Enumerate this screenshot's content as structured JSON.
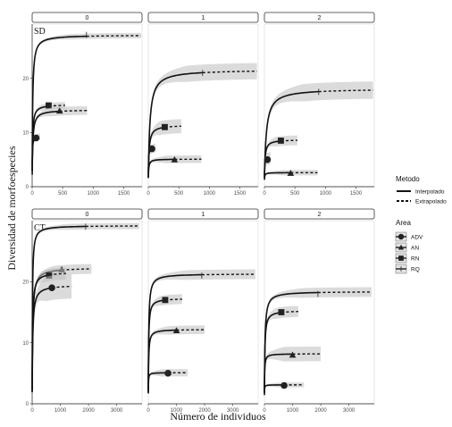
{
  "chart_data": {
    "type": "line",
    "ylabel": "Diversidad de morfoespecies",
    "xlabel": "Número de individuos",
    "legend": {
      "method_title": "Metodo",
      "method_items": [
        "Interpolado",
        "Extrapolado"
      ],
      "area_title": "Area",
      "area_items": [
        "ADV",
        "AN",
        "RN",
        "RQ"
      ],
      "placement": "right"
    },
    "grid": false,
    "rows": [
      {
        "label": "SD",
        "ylim": [
          0,
          30
        ],
        "y_ticks": [
          0,
          10,
          20
        ],
        "xlim": [
          0,
          1800
        ],
        "x_ticks": [
          0,
          500,
          1000,
          1500
        ],
        "panels": [
          {
            "strip": "0",
            "series": [
              {
                "area": "RQ",
                "observed_n": 890,
                "observed_s": 28,
                "extrap_to": 1780,
                "asymptote": 28,
                "halfsat": 8,
                "band": 0.5
              },
              {
                "area": "RN",
                "observed_n": 270,
                "observed_s": 15,
                "extrap_to": 540,
                "asymptote": 15.2,
                "halfsat": 7,
                "band": 0.6
              },
              {
                "area": "AN",
                "observed_n": 450,
                "observed_s": 14,
                "extrap_to": 900,
                "asymptote": 14.2,
                "halfsat": 10,
                "band": 0.8
              },
              {
                "area": "ADV",
                "observed_n": 65,
                "observed_s": 9,
                "extrap_to": 130,
                "asymptote": 9.4,
                "halfsat": 3,
                "band": 0.6
              }
            ]
          },
          {
            "strip": "1",
            "series": [
              {
                "area": "RQ",
                "observed_n": 890,
                "observed_s": 21,
                "extrap_to": 1780,
                "asymptote": 21.6,
                "halfsat": 25,
                "band": 1.5
              },
              {
                "area": "RN",
                "observed_n": 270,
                "observed_s": 11,
                "extrap_to": 540,
                "asymptote": 11.4,
                "halfsat": 12,
                "band": 1.3
              },
              {
                "area": "AN",
                "observed_n": 430,
                "observed_s": 5,
                "extrap_to": 870,
                "asymptote": 5.1,
                "halfsat": 6,
                "band": 0.7
              },
              {
                "area": "ADV",
                "observed_n": 60,
                "observed_s": 7,
                "extrap_to": 120,
                "asymptote": 7.3,
                "halfsat": 3,
                "band": 0.8
              }
            ]
          },
          {
            "strip": "2",
            "series": [
              {
                "area": "RQ",
                "observed_n": 890,
                "observed_s": 17.5,
                "extrap_to": 1780,
                "asymptote": 18.1,
                "halfsat": 30,
                "band": 1.6
              },
              {
                "area": "RN",
                "observed_n": 270,
                "observed_s": 8.5,
                "extrap_to": 540,
                "asymptote": 8.7,
                "halfsat": 10,
                "band": 0.9
              },
              {
                "area": "AN",
                "observed_n": 430,
                "observed_s": 2.5,
                "extrap_to": 870,
                "asymptote": 2.6,
                "halfsat": 5,
                "band": 0.5
              },
              {
                "area": "ADV",
                "observed_n": 50,
                "observed_s": 5,
                "extrap_to": 100,
                "asymptote": 5.4,
                "halfsat": 3,
                "band": 1.1
              }
            ]
          }
        ]
      },
      {
        "label": "CT",
        "ylim": [
          0,
          30
        ],
        "y_ticks": [
          0,
          10,
          20
        ],
        "xlim": [
          0,
          3900
        ],
        "x_ticks": [
          0,
          1000,
          2000,
          3000
        ],
        "panels": [
          {
            "strip": "0",
            "series": [
              {
                "area": "RQ",
                "observed_n": 1900,
                "observed_s": 29,
                "extrap_to": 3800,
                "asymptote": 29.2,
                "halfsat": 10,
                "band": 0.5
              },
              {
                "area": "AN",
                "observed_n": 1050,
                "observed_s": 22,
                "extrap_to": 2100,
                "asymptote": 22.3,
                "halfsat": 20,
                "band": 0.8
              },
              {
                "area": "RN",
                "observed_n": 600,
                "observed_s": 21,
                "extrap_to": 1200,
                "asymptote": 21.6,
                "halfsat": 15,
                "band": 1.0
              },
              {
                "area": "ADV",
                "observed_n": 700,
                "observed_s": 19,
                "extrap_to": 1400,
                "asymptote": 19.5,
                "halfsat": 20,
                "band": 2.0
              }
            ]
          },
          {
            "strip": "1",
            "series": [
              {
                "area": "RQ",
                "observed_n": 1900,
                "observed_s": 21,
                "extrap_to": 3800,
                "asymptote": 21.3,
                "halfsat": 15,
                "band": 0.8
              },
              {
                "area": "RN",
                "observed_n": 600,
                "observed_s": 17,
                "extrap_to": 1200,
                "asymptote": 17.3,
                "halfsat": 12,
                "band": 0.8
              },
              {
                "area": "AN",
                "observed_n": 1000,
                "observed_s": 12,
                "extrap_to": 2000,
                "asymptote": 12.2,
                "halfsat": 12,
                "band": 0.7
              },
              {
                "area": "ADV",
                "observed_n": 700,
                "observed_s": 5,
                "extrap_to": 1400,
                "asymptote": 5.1,
                "halfsat": 5,
                "band": 0.6
              }
            ]
          },
          {
            "strip": "2",
            "series": [
              {
                "area": "RQ",
                "observed_n": 1900,
                "observed_s": 18,
                "extrap_to": 3800,
                "asymptote": 18.4,
                "halfsat": 20,
                "band": 0.8
              },
              {
                "area": "RN",
                "observed_n": 600,
                "observed_s": 15,
                "extrap_to": 1200,
                "asymptote": 15.3,
                "halfsat": 15,
                "band": 0.9
              },
              {
                "area": "AN",
                "observed_n": 1000,
                "observed_s": 8,
                "extrap_to": 2000,
                "asymptote": 8.2,
                "halfsat": 8,
                "band": 1.2
              },
              {
                "area": "ADV",
                "observed_n": 700,
                "observed_s": 3,
                "extrap_to": 1400,
                "asymptote": 3.1,
                "halfsat": 4,
                "band": 0.4
              }
            ]
          }
        ]
      }
    ]
  }
}
